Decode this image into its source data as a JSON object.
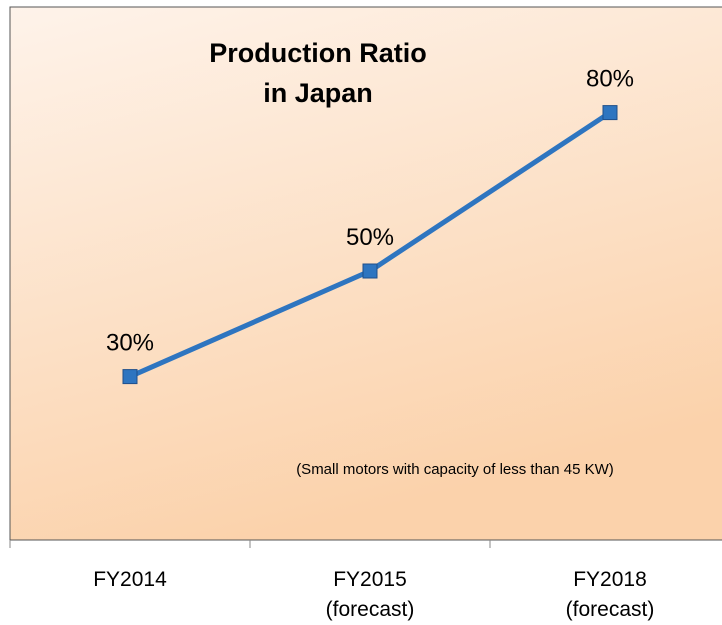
{
  "chart_data": {
    "type": "line",
    "title": "Production Ratio\nin Japan",
    "note": "(Small motors with capacity of less than 45 KW)",
    "categories": [
      "FY2014",
      "FY2015\n(forecast)",
      "FY2018\n(forecast)"
    ],
    "series": [
      {
        "name": "Production Ratio",
        "color": "#2e75c0",
        "values": [
          30,
          50,
          80
        ],
        "value_labels": [
          "30%",
          "50%",
          "80%"
        ]
      }
    ],
    "ylim": [
      0,
      100
    ]
  }
}
